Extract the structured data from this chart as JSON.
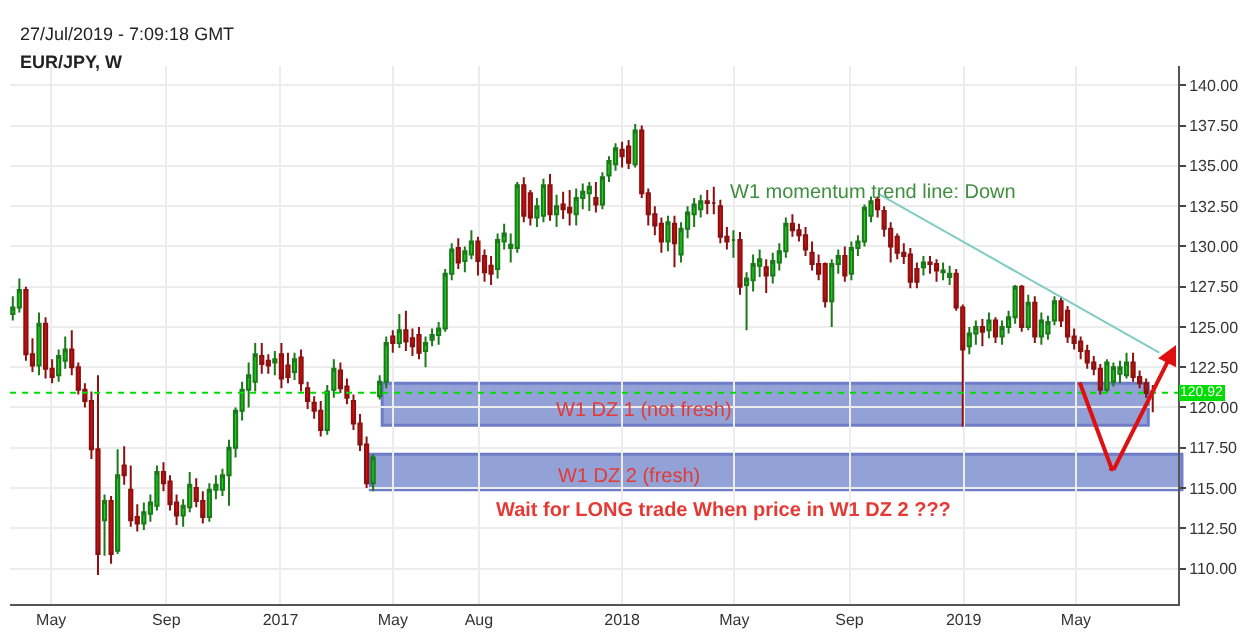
{
  "chart_data": {
    "type": "candlestick",
    "title": "EUR/JPY, W",
    "subtitle": "27/Jul/2019 - 7:09:18 GMT",
    "x": [
      "2016-03-21",
      "2016-03-28",
      "2016-04-04",
      "2016-04-11",
      "2016-04-18",
      "2016-04-25",
      "2016-05-02",
      "2016-05-09",
      "2016-05-16",
      "2016-05-23",
      "2016-05-30",
      "2016-06-06",
      "2016-06-13",
      "2016-06-20",
      "2016-06-27",
      "2016-07-04",
      "2016-07-11",
      "2016-07-18",
      "2016-07-25",
      "2016-08-01",
      "2016-08-08",
      "2016-08-15",
      "2016-08-22",
      "2016-08-29",
      "2016-09-05",
      "2016-09-12",
      "2016-09-19",
      "2016-09-26",
      "2016-10-03",
      "2016-10-10",
      "2016-10-17",
      "2016-10-24",
      "2016-10-31",
      "2016-11-07",
      "2016-11-14",
      "2016-11-21",
      "2016-11-28",
      "2016-12-05",
      "2016-12-12",
      "2016-12-19",
      "2016-12-26",
      "2017-01-02",
      "2017-01-09",
      "2017-01-16",
      "2017-01-23",
      "2017-01-30",
      "2017-02-06",
      "2017-02-13",
      "2017-02-20",
      "2017-02-27",
      "2017-03-06",
      "2017-03-13",
      "2017-03-20",
      "2017-03-27",
      "2017-04-03",
      "2017-04-10",
      "2017-04-17",
      "2017-04-24",
      "2017-05-01",
      "2017-05-08",
      "2017-05-15",
      "2017-05-22",
      "2017-05-29",
      "2017-06-05",
      "2017-06-12",
      "2017-06-19",
      "2017-06-26",
      "2017-07-03",
      "2017-07-10",
      "2017-07-17",
      "2017-07-24",
      "2017-07-31",
      "2017-08-07",
      "2017-08-14",
      "2017-08-21",
      "2017-08-28",
      "2017-09-04",
      "2017-09-11",
      "2017-09-18",
      "2017-09-25",
      "2017-10-02",
      "2017-10-09",
      "2017-10-16",
      "2017-10-23",
      "2017-10-30",
      "2017-11-06",
      "2017-11-13",
      "2017-11-20",
      "2017-11-27",
      "2017-12-04",
      "2017-12-11",
      "2017-12-18",
      "2017-12-25",
      "2018-01-01",
      "2018-01-08",
      "2018-01-15",
      "2018-01-22",
      "2018-01-29",
      "2018-02-05",
      "2018-02-12",
      "2018-02-19",
      "2018-02-26",
      "2018-03-05",
      "2018-03-12",
      "2018-03-19",
      "2018-03-26",
      "2018-04-02",
      "2018-04-09",
      "2018-04-16",
      "2018-04-23",
      "2018-04-30",
      "2018-05-07",
      "2018-05-14",
      "2018-05-21",
      "2018-05-28",
      "2018-06-04",
      "2018-06-11",
      "2018-06-18",
      "2018-06-25",
      "2018-07-02",
      "2018-07-09",
      "2018-07-16",
      "2018-07-23",
      "2018-07-30",
      "2018-08-06",
      "2018-08-13",
      "2018-08-20",
      "2018-08-27",
      "2018-09-03",
      "2018-09-10",
      "2018-09-17",
      "2018-09-24",
      "2018-10-01",
      "2018-10-08",
      "2018-10-15",
      "2018-10-22",
      "2018-10-29",
      "2018-11-05",
      "2018-11-12",
      "2018-11-19",
      "2018-11-26",
      "2018-12-03",
      "2018-12-10",
      "2018-12-17",
      "2018-12-24",
      "2018-12-31",
      "2019-01-07",
      "2019-01-14",
      "2019-01-21",
      "2019-01-28",
      "2019-02-04",
      "2019-02-11",
      "2019-02-18",
      "2019-02-25",
      "2019-03-04",
      "2019-03-11",
      "2019-03-18",
      "2019-03-25",
      "2019-04-01",
      "2019-04-08",
      "2019-04-15",
      "2019-04-22",
      "2019-04-29",
      "2019-05-06",
      "2019-05-13",
      "2019-05-20",
      "2019-05-27",
      "2019-06-03",
      "2019-06-10",
      "2019-06-17",
      "2019-06-24",
      "2019-07-01",
      "2019-07-08",
      "2019-07-15",
      "2019-07-22"
    ],
    "ohlc": [
      [
        125.8,
        126.9,
        125.4,
        126.2
      ],
      [
        126.2,
        128.0,
        125.9,
        127.3
      ],
      [
        127.3,
        127.5,
        122.9,
        123.3
      ],
      [
        123.3,
        124.3,
        122.2,
        122.6
      ],
      [
        122.6,
        125.9,
        122.0,
        125.2
      ],
      [
        125.2,
        125.6,
        121.8,
        122.4
      ],
      [
        122.4,
        123.0,
        121.5,
        121.9
      ],
      [
        122.0,
        123.6,
        121.6,
        123.2
      ],
      [
        122.9,
        124.4,
        122.4,
        123.6
      ],
      [
        123.6,
        124.8,
        122.0,
        122.5
      ],
      [
        122.5,
        122.8,
        120.8,
        121.1
      ],
      [
        121.1,
        121.5,
        120.0,
        120.4
      ],
      [
        120.4,
        121.0,
        116.8,
        117.4
      ],
      [
        117.4,
        122.0,
        109.6,
        110.9
      ],
      [
        113.0,
        114.6,
        110.8,
        114.2
      ],
      [
        114.2,
        114.5,
        110.3,
        110.9
      ],
      [
        111.1,
        117.4,
        110.9,
        115.8
      ],
      [
        116.4,
        117.6,
        115.2,
        115.8
      ],
      [
        114.9,
        116.4,
        112.6,
        113.0
      ],
      [
        113.2,
        114.0,
        112.3,
        112.8
      ],
      [
        112.8,
        114.1,
        112.4,
        113.5
      ],
      [
        113.4,
        114.6,
        112.9,
        114.1
      ],
      [
        113.9,
        116.4,
        113.6,
        116.0
      ],
      [
        116.0,
        116.6,
        114.8,
        115.3
      ],
      [
        115.4,
        115.8,
        113.6,
        114.0
      ],
      [
        114.1,
        114.6,
        112.7,
        113.3
      ],
      [
        113.3,
        114.3,
        112.6,
        113.9
      ],
      [
        113.8,
        116.0,
        113.5,
        115.2
      ],
      [
        115.0,
        115.6,
        113.8,
        114.2
      ],
      [
        114.2,
        114.8,
        112.8,
        113.2
      ],
      [
        113.2,
        115.3,
        112.9,
        114.9
      ],
      [
        114.9,
        115.8,
        114.3,
        115.2
      ],
      [
        114.9,
        116.2,
        114.5,
        115.8
      ],
      [
        115.8,
        118.0,
        113.9,
        117.5
      ],
      [
        117.5,
        120.0,
        116.9,
        119.8
      ],
      [
        119.8,
        121.6,
        119.2,
        121.1
      ],
      [
        121.1,
        122.8,
        120.0,
        122.0
      ],
      [
        121.6,
        124.0,
        121.0,
        123.3
      ],
      [
        123.2,
        124.0,
        122.1,
        122.7
      ],
      [
        122.9,
        123.3,
        122.1,
        122.6
      ],
      [
        122.8,
        123.5,
        122.0,
        123.0
      ],
      [
        123.3,
        124.0,
        121.2,
        121.8
      ],
      [
        122.6,
        123.4,
        121.5,
        121.9
      ],
      [
        122.2,
        123.4,
        121.7,
        123.0
      ],
      [
        123.1,
        123.6,
        121.0,
        121.5
      ],
      [
        121.2,
        121.6,
        119.9,
        120.4
      ],
      [
        120.3,
        120.7,
        119.3,
        119.8
      ],
      [
        119.8,
        120.4,
        118.2,
        118.6
      ],
      [
        118.6,
        121.4,
        118.3,
        121.0
      ],
      [
        121.1,
        123.0,
        120.6,
        122.4
      ],
      [
        122.3,
        122.8,
        120.9,
        121.2
      ],
      [
        121.3,
        121.8,
        120.2,
        120.6
      ],
      [
        120.4,
        120.8,
        118.6,
        119.0
      ],
      [
        119.0,
        119.6,
        117.3,
        117.7
      ],
      [
        117.7,
        118.2,
        115.0,
        115.3
      ],
      [
        115.3,
        117.1,
        114.8,
        116.9
      ],
      [
        120.7,
        122.0,
        120.5,
        121.6
      ],
      [
        121.6,
        124.4,
        121.2,
        124.0
      ],
      [
        124.4,
        124.8,
        123.4,
        124.0
      ],
      [
        124.0,
        125.8,
        123.7,
        124.8
      ],
      [
        124.8,
        126.0,
        123.5,
        124.1
      ],
      [
        124.3,
        124.9,
        123.2,
        123.8
      ],
      [
        124.5,
        125.0,
        123.0,
        123.4
      ],
      [
        123.5,
        124.4,
        122.5,
        124.0
      ],
      [
        124.2,
        124.9,
        123.8,
        124.5
      ],
      [
        124.5,
        125.3,
        123.9,
        124.9
      ],
      [
        124.9,
        128.6,
        124.7,
        128.3
      ],
      [
        128.3,
        130.2,
        127.9,
        129.8
      ],
      [
        129.9,
        130.5,
        128.6,
        129.0
      ],
      [
        129.1,
        130.0,
        128.4,
        129.7
      ],
      [
        129.5,
        131.0,
        129.2,
        130.3
      ],
      [
        130.3,
        130.6,
        128.2,
        129.1
      ],
      [
        129.4,
        129.8,
        127.8,
        128.4
      ],
      [
        128.8,
        129.4,
        127.6,
        128.3
      ],
      [
        128.6,
        130.8,
        128.0,
        130.4
      ],
      [
        130.3,
        131.4,
        129.8,
        130.8
      ],
      [
        129.9,
        130.8,
        129.0,
        130.1
      ],
      [
        129.9,
        134.0,
        129.6,
        133.8
      ],
      [
        133.8,
        134.3,
        131.5,
        131.9
      ],
      [
        133.3,
        133.5,
        131.3,
        131.8
      ],
      [
        131.8,
        133.0,
        131.2,
        132.5
      ],
      [
        131.9,
        134.2,
        131.5,
        133.8
      ],
      [
        133.8,
        134.5,
        131.6,
        132.0
      ],
      [
        132.0,
        133.2,
        131.2,
        132.5
      ],
      [
        132.6,
        133.4,
        131.7,
        132.3
      ],
      [
        132.4,
        133.5,
        131.3,
        132.1
      ],
      [
        132.0,
        133.6,
        131.3,
        133.0
      ],
      [
        133.0,
        133.9,
        132.3,
        133.4
      ],
      [
        133.3,
        134.0,
        132.2,
        133.7
      ],
      [
        133.0,
        134.0,
        132.1,
        132.6
      ],
      [
        132.6,
        134.6,
        132.3,
        134.3
      ],
      [
        134.4,
        135.6,
        134.0,
        135.3
      ],
      [
        135.1,
        136.4,
        134.7,
        136.1
      ],
      [
        136.0,
        136.5,
        134.9,
        135.6
      ],
      [
        136.2,
        136.6,
        134.8,
        135.2
      ],
      [
        135.1,
        137.6,
        134.9,
        137.2
      ],
      [
        137.2,
        137.5,
        133.0,
        133.3
      ],
      [
        133.3,
        133.6,
        131.3,
        132.0
      ],
      [
        132.0,
        132.5,
        130.7,
        131.3
      ],
      [
        131.4,
        131.8,
        129.6,
        130.3
      ],
      [
        130.3,
        131.9,
        129.7,
        131.5
      ],
      [
        131.4,
        131.9,
        128.7,
        130.2
      ],
      [
        129.5,
        131.5,
        129.0,
        131.1
      ],
      [
        131.1,
        132.5,
        130.5,
        132.1
      ],
      [
        132.0,
        133.0,
        131.2,
        132.6
      ],
      [
        132.3,
        133.2,
        131.8,
        132.8
      ],
      [
        132.8,
        133.5,
        132.0,
        132.7
      ],
      [
        132.7,
        133.7,
        132.0,
        132.7
      ],
      [
        132.5,
        132.9,
        130.2,
        130.6
      ],
      [
        130.6,
        131.2,
        129.8,
        130.3
      ],
      [
        130.4,
        131.0,
        129.3,
        130.4
      ],
      [
        130.4,
        130.9,
        127.0,
        127.5
      ],
      [
        127.6,
        128.4,
        124.8,
        128.0
      ],
      [
        127.9,
        129.5,
        127.2,
        128.9
      ],
      [
        128.8,
        129.8,
        128.1,
        129.2
      ],
      [
        128.7,
        129.2,
        127.1,
        128.2
      ],
      [
        128.2,
        129.6,
        127.7,
        129.1
      ],
      [
        129.0,
        130.2,
        128.5,
        129.7
      ],
      [
        129.7,
        131.8,
        129.3,
        131.4
      ],
      [
        131.4,
        132.0,
        130.6,
        131.0
      ],
      [
        131.0,
        131.4,
        130.3,
        130.7
      ],
      [
        130.7,
        131.2,
        129.4,
        129.8
      ],
      [
        129.6,
        130.3,
        128.5,
        128.9
      ],
      [
        128.9,
        129.5,
        127.9,
        128.3
      ],
      [
        128.9,
        129.0,
        126.2,
        126.6
      ],
      [
        126.6,
        129.2,
        125.0,
        128.9
      ],
      [
        128.9,
        129.8,
        128.3,
        129.4
      ],
      [
        129.4,
        130.0,
        127.8,
        128.2
      ],
      [
        128.3,
        130.3,
        127.9,
        129.9
      ],
      [
        129.9,
        130.7,
        129.4,
        130.3
      ],
      [
        130.3,
        132.6,
        130.0,
        132.4
      ],
      [
        131.9,
        133.1,
        131.5,
        132.8
      ],
      [
        132.9,
        133.1,
        131.8,
        132.3
      ],
      [
        132.2,
        132.5,
        130.6,
        131.1
      ],
      [
        131.1,
        131.5,
        129.0,
        130.0
      ],
      [
        130.6,
        130.8,
        129.2,
        129.6
      ],
      [
        129.6,
        130.2,
        128.9,
        129.4
      ],
      [
        129.5,
        129.9,
        127.4,
        127.8
      ],
      [
        128.6,
        129.0,
        127.4,
        127.8
      ],
      [
        128.7,
        129.4,
        128.2,
        129.0
      ],
      [
        129.0,
        129.4,
        128.3,
        128.9
      ],
      [
        128.9,
        129.2,
        127.8,
        128.5
      ],
      [
        128.4,
        129.0,
        127.9,
        128.5
      ],
      [
        128.1,
        128.8,
        127.6,
        128.3
      ],
      [
        128.3,
        128.6,
        126.0,
        126.2
      ],
      [
        126.2,
        126.4,
        118.8,
        123.6
      ],
      [
        123.8,
        125.0,
        123.3,
        124.6
      ],
      [
        124.6,
        125.4,
        123.9,
        125.0
      ],
      [
        125.0,
        125.5,
        123.8,
        124.7
      ],
      [
        124.8,
        125.9,
        124.3,
        125.4
      ],
      [
        125.4,
        125.6,
        124.0,
        124.4
      ],
      [
        124.4,
        125.4,
        123.9,
        125.0
      ],
      [
        125.0,
        126.0,
        124.6,
        125.6
      ],
      [
        125.6,
        127.6,
        125.2,
        127.5
      ],
      [
        127.5,
        127.6,
        124.7,
        125.0
      ],
      [
        125.0,
        127.0,
        124.8,
        126.5
      ],
      [
        126.5,
        126.9,
        124.0,
        124.4
      ],
      [
        124.4,
        125.9,
        123.9,
        125.4
      ],
      [
        124.6,
        125.7,
        124.2,
        125.3
      ],
      [
        125.4,
        126.9,
        125.1,
        126.6
      ],
      [
        126.6,
        126.9,
        125.0,
        125.4
      ],
      [
        126.0,
        126.3,
        124.0,
        124.4
      ],
      [
        124.4,
        124.9,
        123.6,
        124.0
      ],
      [
        124.1,
        124.4,
        123.0,
        123.5
      ],
      [
        123.5,
        123.9,
        122.4,
        122.8
      ],
      [
        122.8,
        123.2,
        122.0,
        122.4
      ],
      [
        122.4,
        122.7,
        120.8,
        121.1
      ],
      [
        121.1,
        123.0,
        120.9,
        122.8
      ],
      [
        121.6,
        122.8,
        121.3,
        122.5
      ],
      [
        122.1,
        122.9,
        121.5,
        122.5
      ],
      [
        122.0,
        123.4,
        121.8,
        122.8
      ],
      [
        122.8,
        123.4,
        121.6,
        121.9
      ],
      [
        121.9,
        122.3,
        121.2,
        121.5
      ],
      [
        121.5,
        121.8,
        120.6,
        120.9
      ],
      [
        121.0,
        121.4,
        119.7,
        120.92
      ]
    ],
    "series": [
      {
        "type": "line",
        "color": "#80cbc4",
        "x": [
          "2018-10-01",
          "2019-07-29"
        ],
        "values": [
          133.3,
          123.4
        ]
      }
    ],
    "xlim": [
      "2016-03-18",
      "2019-08-18"
    ],
    "xticks": [
      {
        "value": "2016-05-01",
        "label": "May"
      },
      {
        "value": "2016-09-01",
        "label": "Sep"
      },
      {
        "value": "2017-01-01",
        "label": "2017"
      },
      {
        "value": "2017-05-01",
        "label": "May"
      },
      {
        "value": "2017-08-01",
        "label": "Aug"
      },
      {
        "value": "2018-01-01",
        "label": "2018"
      },
      {
        "value": "2018-05-01",
        "label": "May"
      },
      {
        "value": "2018-09-01",
        "label": "Sep"
      },
      {
        "value": "2019-01-01",
        "label": "2019"
      },
      {
        "value": "2019-05-01",
        "label": "May"
      }
    ],
    "ylim": [
      107.8,
      141.2
    ],
    "yticks": [
      {
        "value": 110,
        "label": "110.00"
      },
      {
        "value": 112.5,
        "label": "112.50"
      },
      {
        "value": 115,
        "label": "115.00"
      },
      {
        "value": 117.5,
        "label": "117.50"
      },
      {
        "value": 120,
        "label": "120.00"
      },
      {
        "value": 122.5,
        "label": "122.50"
      },
      {
        "value": 125,
        "label": "125.00"
      },
      {
        "value": 127.5,
        "label": "127.50"
      },
      {
        "value": 130,
        "label": "130.00"
      },
      {
        "value": 132.5,
        "label": "132.50"
      },
      {
        "value": 135,
        "label": "135.00"
      },
      {
        "value": 137.5,
        "label": "137.50"
      },
      {
        "value": 140,
        "label": "140.00"
      }
    ],
    "grid": true,
    "ref_lines": [
      {
        "axis": "y",
        "value": 120.92,
        "label": "120.92",
        "color": "#00dd00",
        "line_style": "dotted"
      }
    ],
    "bands": [
      {
        "axis": "y",
        "from": 118.9,
        "to": 121.5,
        "label": "W1 DZ 1 (not fresh)",
        "color": "#6f83c9"
      },
      {
        "axis": "y",
        "from": 114.9,
        "to": 117.1,
        "label": "W1 DZ 2 (fresh)",
        "color": "#6f83c9"
      }
    ],
    "annotations": [
      "W1 momentum trend line: Down",
      "Wait for LONG trade When price in W1 DZ 2 ???"
    ]
  }
}
